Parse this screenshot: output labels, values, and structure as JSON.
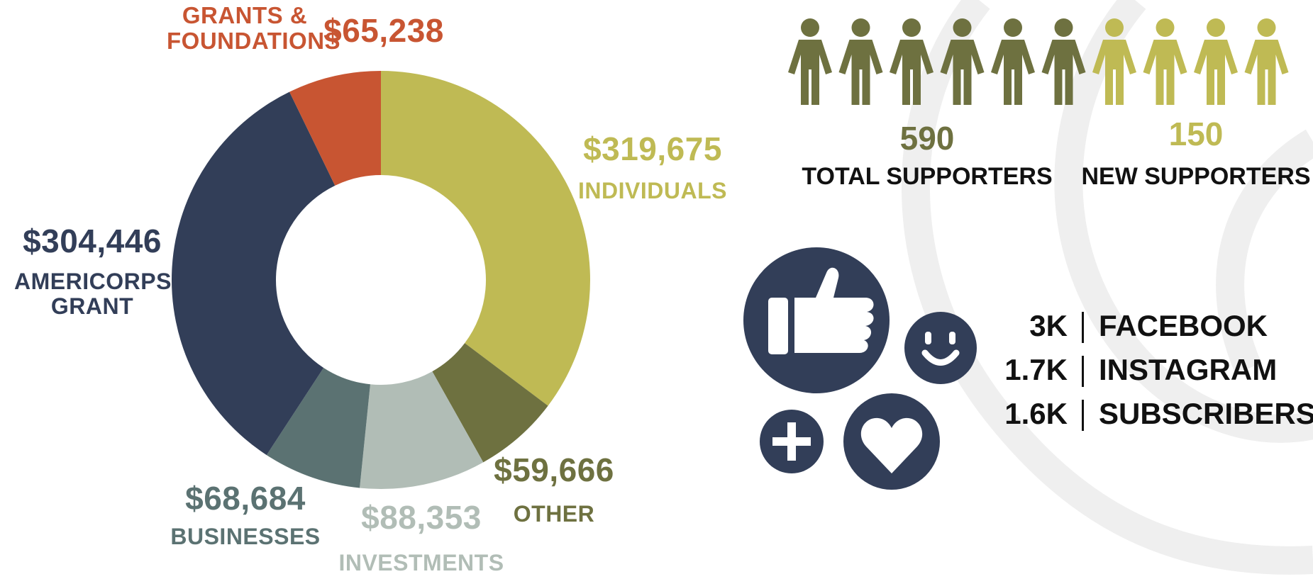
{
  "chart_data": {
    "type": "donut",
    "categories": [
      "INDIVIDUALS",
      "OTHER",
      "INVESTMENTS",
      "BUSINESSES",
      "AMERICORPS GRANT",
      "GRANTS & FOUNDATIONS"
    ],
    "series": [
      {
        "values": [
          319675,
          59666,
          88353,
          68684,
          304446,
          65238
        ],
        "value_labels": [
          "$319,675",
          "$59,666",
          "$88,353",
          "$68,684",
          "$304,446",
          "$65,238"
        ],
        "colors": [
          "#bfba54",
          "#6e7140",
          "#b1bdb6",
          "#5b7272",
          "#323e58",
          "#c85532"
        ]
      }
    ]
  },
  "supporters": [
    {
      "value": "590",
      "label": "TOTAL SUPPORTERS",
      "color": "#6e7140"
    },
    {
      "value": "150",
      "label": "NEW SUPPORTERS",
      "color": "#bfba54"
    }
  ],
  "social": [
    {
      "count": "3K",
      "name": "FACEBOOK"
    },
    {
      "count": "1.7K",
      "name": "INSTAGRAM"
    },
    {
      "count": "1.6K",
      "name": "SUBSCRIBERS"
    }
  ]
}
